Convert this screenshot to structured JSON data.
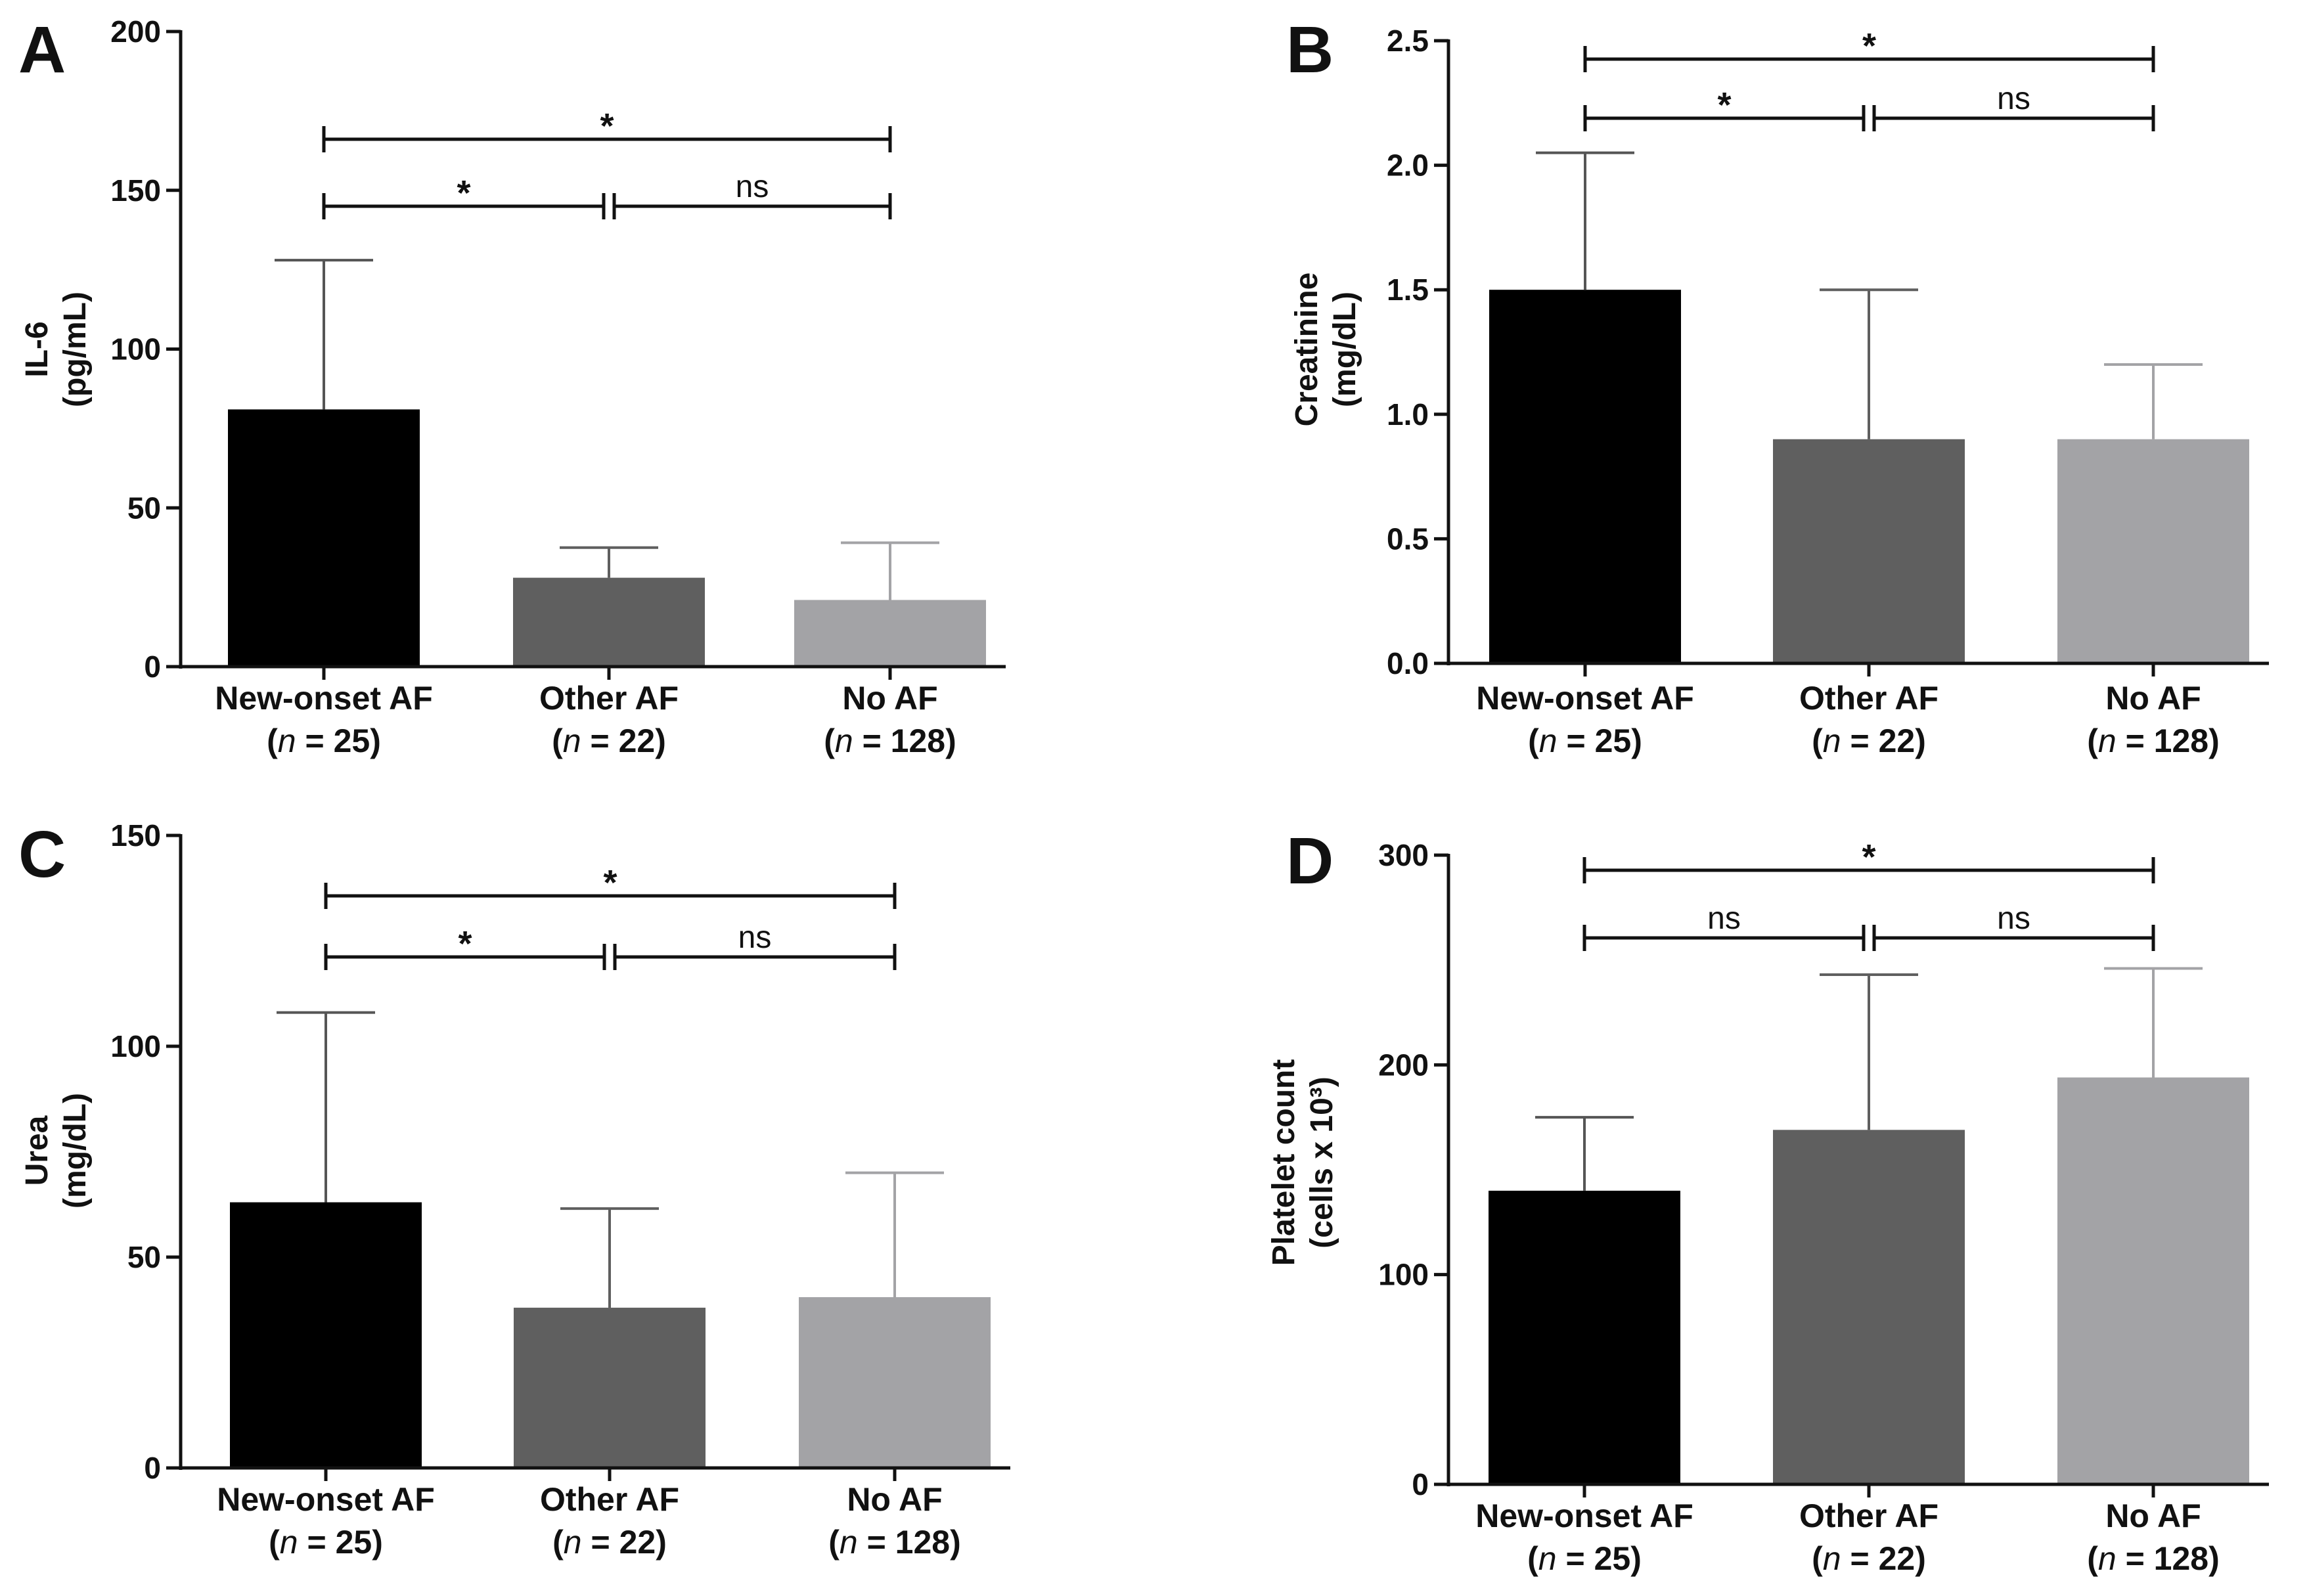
{
  "figure_title": "",
  "chart_data": [
    {
      "panel": "A",
      "type": "bar",
      "title": "",
      "ylabel_lines": [
        "IL-6",
        "(pg/mL)"
      ],
      "ylim": [
        0,
        200
      ],
      "yticks": [
        "0",
        "50",
        "100",
        "150",
        "200"
      ],
      "ytick_values": [
        0,
        50,
        100,
        150,
        200
      ],
      "categories": [
        "New-onset AF",
        "Other AF",
        "No AF"
      ],
      "n_labels": [
        "25",
        "22",
        "128"
      ],
      "values": [
        81,
        28,
        21
      ],
      "error_upper": [
        128,
        37.5,
        39
      ],
      "colors": [
        "#000000",
        "#5f5f5f",
        "#a3a3a6"
      ],
      "comparisons": [
        {
          "from": 0,
          "to": 2,
          "label": "*",
          "level": 2
        },
        {
          "from": 0,
          "to": 1,
          "label": "*",
          "level": 1
        },
        {
          "from": 1,
          "to": 2,
          "label": "ns",
          "level": 1
        }
      ]
    },
    {
      "panel": "B",
      "type": "bar",
      "title": "",
      "ylabel_lines": [
        "Creatinine",
        "(mg/dL)"
      ],
      "ylim": [
        0,
        2.5
      ],
      "yticks": [
        "0.0",
        "0.5",
        "1.0",
        "1.5",
        "2.0",
        "2.5"
      ],
      "ytick_values": [
        0,
        0.5,
        1.0,
        1.5,
        2.0,
        2.5
      ],
      "categories": [
        "New-onset AF",
        "Other AF",
        "No AF"
      ],
      "n_labels": [
        "25",
        "22",
        "128"
      ],
      "values": [
        1.5,
        0.9,
        0.9
      ],
      "error_upper": [
        2.05,
        1.5,
        1.2
      ],
      "colors": [
        "#000000",
        "#5f5f5f",
        "#a3a3a6"
      ],
      "comparisons": [
        {
          "from": 0,
          "to": 2,
          "label": "*",
          "level": 2
        },
        {
          "from": 0,
          "to": 1,
          "label": "*",
          "level": 1
        },
        {
          "from": 1,
          "to": 2,
          "label": "ns",
          "level": 1
        }
      ]
    },
    {
      "panel": "C",
      "type": "bar",
      "title": "",
      "ylabel_lines": [
        "Urea",
        "(mg/dL)"
      ],
      "ylim": [
        0,
        150
      ],
      "yticks": [
        "0",
        "50",
        "100",
        "150"
      ],
      "ytick_values": [
        0,
        50,
        100,
        150
      ],
      "categories": [
        "New-onset AF",
        "Other AF",
        "No AF"
      ],
      "n_labels": [
        "25",
        "22",
        "128"
      ],
      "values": [
        63,
        38,
        40.5
      ],
      "error_upper": [
        108,
        61.5,
        70
      ],
      "colors": [
        "#000000",
        "#5f5f5f",
        "#a3a3a6"
      ],
      "comparisons": [
        {
          "from": 0,
          "to": 2,
          "label": "*",
          "level": 2
        },
        {
          "from": 0,
          "to": 1,
          "label": "*",
          "level": 1
        },
        {
          "from": 1,
          "to": 2,
          "label": "ns",
          "level": 1
        }
      ]
    },
    {
      "panel": "D",
      "type": "bar",
      "title": "",
      "ylabel_lines": [
        "Platelet count",
        "(cells x 10³)"
      ],
      "ylim": [
        0,
        300
      ],
      "yticks": [
        "0",
        "100",
        "200",
        "300"
      ],
      "ytick_values": [
        0,
        100,
        200,
        300
      ],
      "categories": [
        "New-onset AF",
        "Other AF",
        "No AF"
      ],
      "n_labels": [
        "25",
        "22",
        "128"
      ],
      "values": [
        140,
        169,
        194
      ],
      "error_upper": [
        175,
        243,
        246
      ],
      "colors": [
        "#000000",
        "#5f5f5f",
        "#a3a3a6"
      ],
      "comparisons": [
        {
          "from": 0,
          "to": 2,
          "label": "*",
          "level": 2
        },
        {
          "from": 0,
          "to": 1,
          "label": "ns",
          "level": 1
        },
        {
          "from": 1,
          "to": 2,
          "label": "ns",
          "level": 1
        }
      ]
    }
  ]
}
